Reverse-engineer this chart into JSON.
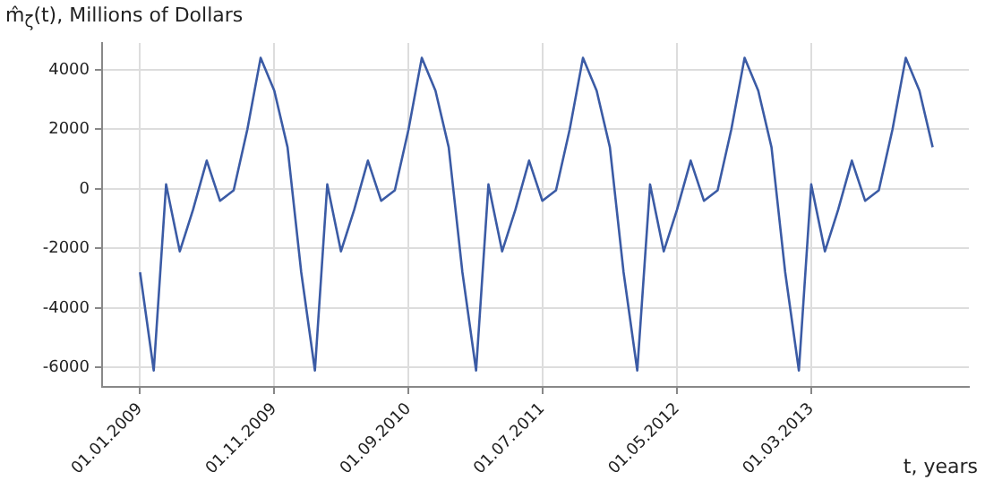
{
  "chart_data": {
    "type": "line",
    "ylabel": "m̂$_{ζ}$(t), Millions of Dollars",
    "xlabel": "t, years",
    "x": [
      "2009-01",
      "2009-02",
      "2009-03",
      "2009-04",
      "2009-05",
      "2009-06",
      "2009-07",
      "2009-08",
      "2009-09",
      "2009-10",
      "2009-11",
      "2009-12",
      "2010-01",
      "2010-02",
      "2010-03",
      "2010-04",
      "2010-05",
      "2010-06",
      "2010-07",
      "2010-08",
      "2010-09",
      "2010-10",
      "2010-11",
      "2010-12",
      "2011-01",
      "2011-02",
      "2011-03",
      "2011-04",
      "2011-05",
      "2011-06",
      "2011-07",
      "2011-08",
      "2011-09",
      "2011-10",
      "2011-11",
      "2011-12",
      "2012-01",
      "2012-02",
      "2012-03",
      "2012-04",
      "2012-05",
      "2012-06",
      "2012-07",
      "2012-08",
      "2012-09",
      "2012-10",
      "2012-11",
      "2012-12",
      "2013-01",
      "2013-02",
      "2013-03",
      "2013-04",
      "2013-05",
      "2013-06",
      "2013-07",
      "2013-08",
      "2013-09",
      "2013-10",
      "2013-11",
      "2013-12"
    ],
    "series": [
      {
        "color": "#3b5ba5",
        "values": [
          -2800,
          -6100,
          150,
          -2100,
          -700,
          950,
          -400,
          -50,
          2000,
          4400,
          3300,
          1400,
          -2800,
          -6100,
          150,
          -2100,
          -700,
          950,
          -400,
          -50,
          2000,
          4400,
          3300,
          1400,
          -2800,
          -6100,
          150,
          -2100,
          -700,
          950,
          -400,
          -50,
          2000,
          4400,
          3300,
          1400,
          -2800,
          -6100,
          150,
          -2100,
          -700,
          950,
          -400,
          -50,
          2000,
          4400,
          3300,
          1400,
          -2800,
          -6100,
          150,
          -2100,
          -700,
          950,
          -400,
          -50,
          2000,
          4400,
          3300,
          1400
        ]
      }
    ],
    "xlim": [
      "2008-10-07",
      "2014-02-21"
    ],
    "xticks": [
      {
        "value": "2009-01-01",
        "label": "01.01.2009"
      },
      {
        "value": "2009-11-01",
        "label": "01.11.2009"
      },
      {
        "value": "2010-09-01",
        "label": "01.09.2010"
      },
      {
        "value": "2011-07-01",
        "label": "01.07.2011"
      },
      {
        "value": "2012-05-01",
        "label": "01.05.2012"
      },
      {
        "value": "2013-03-01",
        "label": "01.03.2013"
      }
    ],
    "ylim": [
      -6650,
      4900
    ],
    "yticks": [
      -6000,
      -4000,
      -2000,
      0,
      2000,
      4000
    ],
    "grid": true,
    "legend": false,
    "line_style": "solid",
    "marker": "none"
  }
}
